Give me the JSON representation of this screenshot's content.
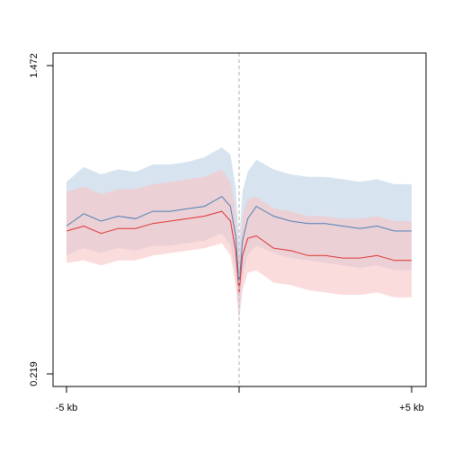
{
  "chart_data": {
    "type": "line",
    "title": "",
    "xlabel": "",
    "ylabel": "",
    "xlim": [
      -5,
      5
    ],
    "ylim": [
      0.219,
      1.472
    ],
    "x_ticks": [
      {
        "value": -5,
        "label": "-5 kb"
      },
      {
        "value": 0,
        "label": ""
      },
      {
        "value": 5,
        "label": "+5 kb"
      }
    ],
    "y_ticks": [
      {
        "value": 0.219,
        "label": "0.219"
      },
      {
        "value": 1.472,
        "label": "1.472"
      }
    ],
    "center_line": {
      "x": 0,
      "color": "#c8c8c8",
      "style": "dashed"
    },
    "series": [
      {
        "color": "#4d7fb5",
        "band_color": "#bcd2e6",
        "x": [
          -5.0,
          -4.5,
          -4.0,
          -3.5,
          -3.0,
          -2.5,
          -2.0,
          -1.5,
          -1.0,
          -0.5,
          -0.25,
          -0.1,
          0.0,
          0.1,
          0.25,
          0.5,
          1.0,
          1.5,
          2.0,
          2.5,
          3.0,
          3.5,
          4.0,
          4.5,
          5.0
        ],
        "values": [
          0.82,
          0.87,
          0.84,
          0.86,
          0.85,
          0.88,
          0.88,
          0.89,
          0.9,
          0.94,
          0.9,
          0.78,
          0.58,
          0.76,
          0.85,
          0.9,
          0.86,
          0.84,
          0.83,
          0.83,
          0.82,
          0.81,
          0.82,
          0.8,
          0.8
        ],
        "lower": [
          0.7,
          0.73,
          0.71,
          0.73,
          0.72,
          0.74,
          0.74,
          0.75,
          0.76,
          0.79,
          0.74,
          0.62,
          0.45,
          0.61,
          0.7,
          0.74,
          0.71,
          0.69,
          0.68,
          0.67,
          0.66,
          0.65,
          0.66,
          0.64,
          0.64
        ],
        "upper": [
          1.0,
          1.06,
          1.03,
          1.05,
          1.04,
          1.07,
          1.07,
          1.08,
          1.1,
          1.14,
          1.11,
          0.98,
          0.75,
          0.96,
          1.04,
          1.09,
          1.05,
          1.03,
          1.02,
          1.02,
          1.01,
          1.0,
          1.01,
          0.99,
          0.99
        ]
      },
      {
        "color": "#e03030",
        "band_color": "#f8c4c4",
        "x": [
          -5.0,
          -4.5,
          -4.0,
          -3.5,
          -3.0,
          -2.5,
          -2.0,
          -1.5,
          -1.0,
          -0.5,
          -0.25,
          -0.1,
          0.0,
          0.1,
          0.25,
          0.5,
          1.0,
          1.5,
          2.0,
          2.5,
          3.0,
          3.5,
          4.0,
          4.5,
          5.0
        ],
        "values": [
          0.8,
          0.82,
          0.79,
          0.81,
          0.81,
          0.83,
          0.84,
          0.85,
          0.86,
          0.88,
          0.84,
          0.72,
          0.55,
          0.7,
          0.77,
          0.78,
          0.73,
          0.72,
          0.7,
          0.7,
          0.69,
          0.69,
          0.7,
          0.68,
          0.68
        ],
        "lower": [
          0.67,
          0.68,
          0.66,
          0.68,
          0.68,
          0.7,
          0.71,
          0.72,
          0.73,
          0.75,
          0.7,
          0.58,
          0.43,
          0.56,
          0.63,
          0.64,
          0.59,
          0.58,
          0.56,
          0.55,
          0.54,
          0.54,
          0.55,
          0.53,
          0.53
        ],
        "upper": [
          0.96,
          0.98,
          0.95,
          0.97,
          0.97,
          0.99,
          1.0,
          1.01,
          1.02,
          1.05,
          1.0,
          0.88,
          0.68,
          0.86,
          0.93,
          0.94,
          0.89,
          0.88,
          0.86,
          0.86,
          0.85,
          0.85,
          0.86,
          0.84,
          0.84
        ]
      }
    ],
    "grid": false,
    "legend": "none"
  }
}
